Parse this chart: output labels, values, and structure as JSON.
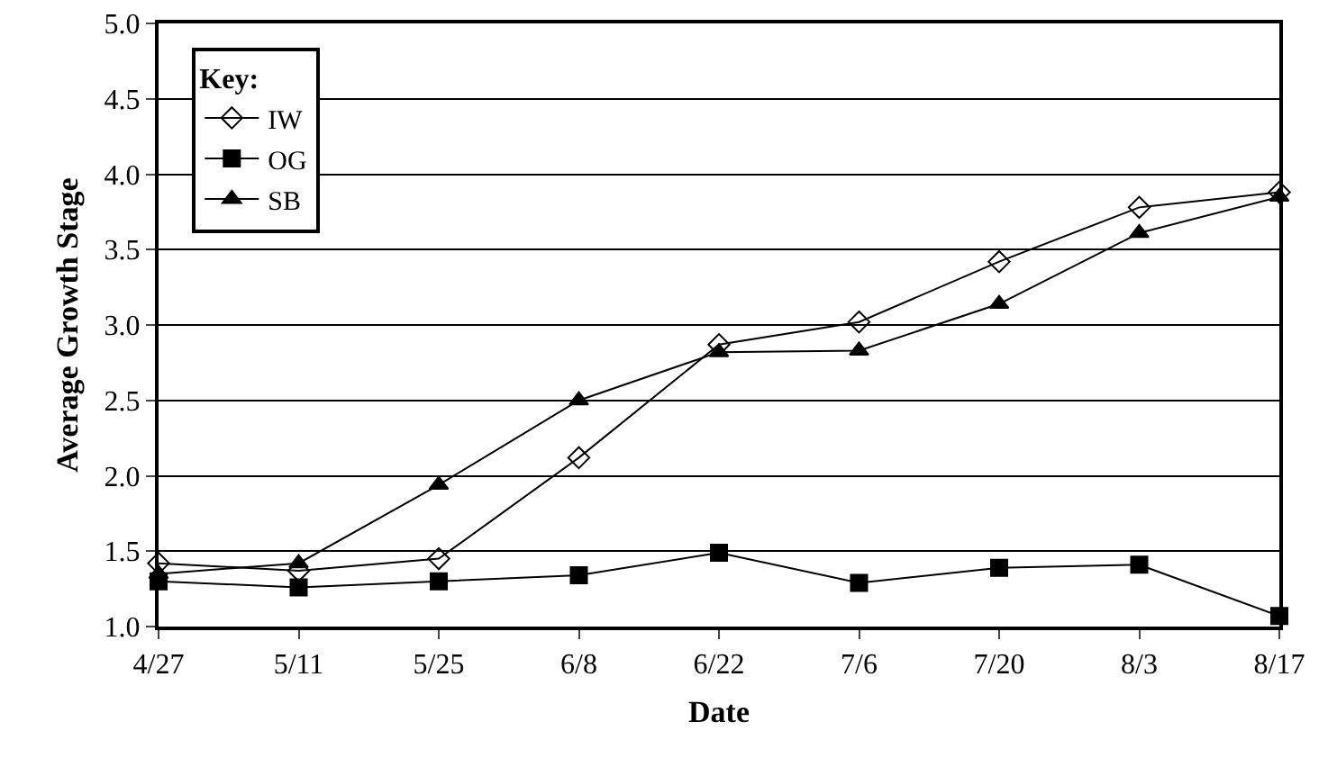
{
  "chart_data": {
    "type": "line",
    "xlabel": "Date",
    "ylabel": "Average Growth Stage",
    "legend_title": "Key:",
    "legend": "top left",
    "grid": "y",
    "categories": [
      "4/27",
      "5/11",
      "5/25",
      "6/8",
      "6/22",
      "7/6",
      "7/20",
      "8/3",
      "8/17"
    ],
    "ylim": [
      1.0,
      5.0
    ],
    "yticks": [
      {
        "value": 1.0,
        "label": "1.0"
      },
      1.5,
      {
        "value": 2.0,
        "label": "2.0"
      },
      2.5,
      {
        "value": 3.0,
        "label": "3.0"
      },
      3.5,
      {
        "value": 4.0,
        "label": "4.0"
      },
      4.5,
      {
        "value": 5.0,
        "label": "5.0"
      }
    ],
    "line_style": "solid",
    "series": [
      {
        "name": "IW",
        "color": "#000000",
        "marker": "diamond",
        "values": [
          1.42,
          1.37,
          1.45,
          2.12,
          2.87,
          3.02,
          3.42,
          3.78,
          3.88
        ]
      },
      {
        "name": "OG",
        "color": "#000000",
        "marker": "square",
        "values": [
          1.3,
          1.26,
          1.3,
          1.34,
          1.49,
          1.29,
          1.39,
          1.41,
          1.07
        ]
      },
      {
        "name": "SB",
        "color": "#000000",
        "marker": "triangle",
        "values": [
          1.35,
          1.42,
          1.94,
          2.5,
          2.82,
          2.83,
          3.14,
          3.61,
          3.85
        ]
      }
    ]
  }
}
